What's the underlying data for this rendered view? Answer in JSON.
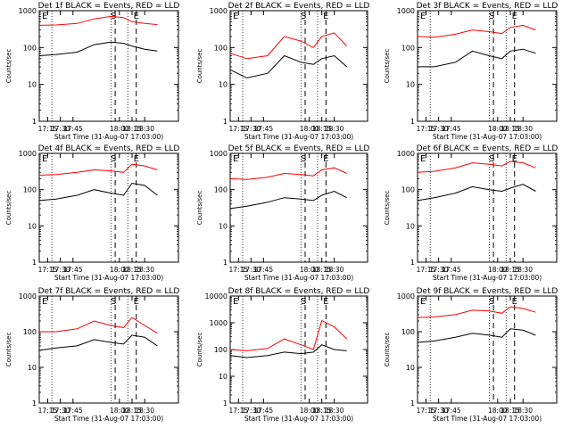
{
  "chart_data": [
    {
      "type": "line",
      "title": "Det 1f BLACK = Events, RED = LLD",
      "ylabel": "Counts/sec",
      "xlabel": "Start Time (31-Aug-07 17:03:00)",
      "yscale": "log",
      "ylim": [
        1,
        1000
      ],
      "ytick_labels": [
        "1",
        "10",
        "100",
        "1000"
      ],
      "xtick_labels": [
        "17:15",
        "17:30",
        "17:45",
        "18:00",
        "18:15",
        "18:30"
      ],
      "annotations": [
        "S",
        "E"
      ],
      "series": [
        {
          "color": "#000000",
          "x": [
            17.05,
            17.25,
            17.5,
            17.7,
            17.9,
            18.05,
            18.15,
            18.3,
            18.45
          ],
          "values": [
            60,
            65,
            75,
            120,
            140,
            130,
            110,
            90,
            80
          ]
        },
        {
          "color": "#ff0000",
          "x": [
            17.05,
            17.25,
            17.5,
            17.7,
            17.9,
            18.05,
            18.15,
            18.3,
            18.45
          ],
          "values": [
            400,
            410,
            450,
            600,
            700,
            650,
            500,
            450,
            420
          ]
        }
      ]
    },
    {
      "type": "line",
      "title": "Det 2f BLACK = Events, RED = LLD",
      "ylabel": "Counts/sec",
      "xlabel": "Start Time (31-Aug-07 17:03:00)",
      "yscale": "log",
      "ylim": [
        1,
        1000
      ],
      "ytick_labels": [
        "1",
        "10",
        "100",
        "1000"
      ],
      "xtick_labels": [
        "17:15",
        "17:30",
        "17:45",
        "18:00",
        "18:15",
        "18:30"
      ],
      "annotations": [
        "S",
        "E"
      ],
      "series": [
        {
          "color": "#000000",
          "x": [
            17.05,
            17.25,
            17.5,
            17.7,
            17.9,
            18.05,
            18.15,
            18.3,
            18.45
          ],
          "values": [
            25,
            15,
            20,
            60,
            40,
            35,
            50,
            60,
            30
          ]
        },
        {
          "color": "#ff0000",
          "x": [
            17.05,
            17.25,
            17.5,
            17.7,
            17.9,
            18.05,
            18.15,
            18.3,
            18.45
          ],
          "values": [
            70,
            50,
            60,
            200,
            150,
            100,
            200,
            250,
            110
          ]
        }
      ]
    },
    {
      "type": "line",
      "title": "Det 3f BLACK = Events, RED = LLD",
      "ylabel": "Counts/sec",
      "xlabel": "Start Time (31-Aug-07 17:03:00)",
      "yscale": "log",
      "ylim": [
        1,
        1000
      ],
      "ytick_labels": [
        "1",
        "10",
        "100",
        "1000"
      ],
      "xtick_labels": [
        "17:15",
        "17:30",
        "17:45",
        "18:00",
        "18:15",
        "18:30"
      ],
      "annotations": [
        "S",
        "E"
      ],
      "series": [
        {
          "color": "#000000",
          "x": [
            17.05,
            17.25,
            17.5,
            17.7,
            17.9,
            18.05,
            18.15,
            18.3,
            18.45
          ],
          "values": [
            30,
            30,
            40,
            80,
            60,
            50,
            80,
            90,
            70
          ]
        },
        {
          "color": "#ff0000",
          "x": [
            17.05,
            17.25,
            17.5,
            17.7,
            17.9,
            18.05,
            18.15,
            18.3,
            18.45
          ],
          "values": [
            200,
            190,
            230,
            300,
            270,
            240,
            350,
            400,
            300
          ]
        }
      ]
    },
    {
      "type": "line",
      "title": "Det 4f BLACK = Events, RED = LLD",
      "ylabel": "Counts/sec",
      "xlabel": "Start Time (31-Aug-07 17:03:00)",
      "yscale": "log",
      "ylim": [
        1,
        1000
      ],
      "ytick_labels": [
        "1",
        "10",
        "100",
        "1000"
      ],
      "xtick_labels": [
        "17:15",
        "17:30",
        "17:45",
        "18:00",
        "18:15",
        "18:30"
      ],
      "annotations": [
        "S",
        "E"
      ],
      "series": [
        {
          "color": "#000000",
          "x": [
            17.05,
            17.25,
            17.5,
            17.7,
            17.9,
            18.05,
            18.15,
            18.3,
            18.45
          ],
          "values": [
            50,
            55,
            70,
            100,
            80,
            70,
            150,
            130,
            70
          ]
        },
        {
          "color": "#ff0000",
          "x": [
            17.05,
            17.25,
            17.5,
            17.7,
            17.9,
            18.05,
            18.15,
            18.3,
            18.45
          ],
          "values": [
            250,
            260,
            300,
            350,
            330,
            300,
            500,
            450,
            350
          ]
        }
      ]
    },
    {
      "type": "line",
      "title": "Det 5f BLACK = Events, RED = LLD",
      "ylabel": "Counts/sec",
      "xlabel": "Start Time (31-Aug-07 17:03:00)",
      "yscale": "log",
      "ylim": [
        1,
        1000
      ],
      "ytick_labels": [
        "1",
        "10",
        "100",
        "1000"
      ],
      "xtick_labels": [
        "17:15",
        "17:30",
        "17:45",
        "18:00",
        "18:15",
        "18:30"
      ],
      "annotations": [
        "S",
        "E"
      ],
      "series": [
        {
          "color": "#000000",
          "x": [
            17.05,
            17.25,
            17.5,
            17.7,
            17.9,
            18.05,
            18.15,
            18.3,
            18.45
          ],
          "values": [
            30,
            35,
            45,
            60,
            55,
            50,
            70,
            90,
            60
          ]
        },
        {
          "color": "#ff0000",
          "x": [
            17.05,
            17.25,
            17.5,
            17.7,
            17.9,
            18.05,
            18.15,
            18.3,
            18.45
          ],
          "values": [
            200,
            190,
            220,
            280,
            260,
            240,
            350,
            400,
            280
          ]
        }
      ]
    },
    {
      "type": "line",
      "title": "Det 6f BLACK = Events, RED = LLD",
      "ylabel": "Counts/sec",
      "xlabel": "Start Time (31-Aug-07 17:03:00)",
      "yscale": "log",
      "ylim": [
        1,
        1000
      ],
      "ytick_labels": [
        "1",
        "10",
        "100",
        "1000"
      ],
      "xtick_labels": [
        "17:15",
        "17:30",
        "17:45",
        "18:00",
        "18:15",
        "18:30"
      ],
      "annotations": [
        "S",
        "E"
      ],
      "series": [
        {
          "color": "#000000",
          "x": [
            17.05,
            17.25,
            17.5,
            17.7,
            17.9,
            18.05,
            18.15,
            18.3,
            18.45
          ],
          "values": [
            50,
            60,
            80,
            120,
            100,
            90,
            110,
            140,
            90
          ]
        },
        {
          "color": "#ff0000",
          "x": [
            17.05,
            17.25,
            17.5,
            17.7,
            17.9,
            18.05,
            18.15,
            18.3,
            18.45
          ],
          "values": [
            300,
            320,
            400,
            550,
            500,
            450,
            600,
            550,
            400
          ]
        }
      ]
    },
    {
      "type": "line",
      "title": "Det 7f BLACK = Events, RED = LLD",
      "ylabel": "Counts/sec",
      "xlabel": "Start Time (31-Aug-07 17:03:00)",
      "yscale": "log",
      "ylim": [
        1,
        1000
      ],
      "ytick_labels": [
        "1",
        "10",
        "100",
        "1000"
      ],
      "xtick_labels": [
        "17:15",
        "17:30",
        "17:45",
        "18:00",
        "18:15",
        "18:30"
      ],
      "annotations": [
        "S",
        "E"
      ],
      "series": [
        {
          "color": "#000000",
          "x": [
            17.05,
            17.25,
            17.5,
            17.7,
            17.9,
            18.05,
            18.15,
            18.3,
            18.45
          ],
          "values": [
            30,
            35,
            40,
            60,
            50,
            45,
            80,
            70,
            40
          ]
        },
        {
          "color": "#ff0000",
          "x": [
            17.05,
            17.25,
            17.5,
            17.7,
            17.9,
            18.05,
            18.15,
            18.3,
            18.45
          ],
          "values": [
            100,
            100,
            120,
            200,
            150,
            130,
            250,
            150,
            90
          ]
        }
      ]
    },
    {
      "type": "line",
      "title": "Det 8f BLACK = Events, RED = LLD",
      "ylabel": "Counts/sec",
      "xlabel": "Start Time (31-Aug-07 17:03:00)",
      "yscale": "log",
      "ylim": [
        1,
        10000
      ],
      "ytick_labels": [
        "1",
        "10",
        "100",
        "1000",
        "10000"
      ],
      "xtick_labels": [
        "17:15",
        "17:30",
        "17:45",
        "18:00",
        "18:15",
        "18:30"
      ],
      "annotations": [
        "S",
        "E"
      ],
      "series": [
        {
          "color": "#000000",
          "x": [
            17.05,
            17.25,
            17.5,
            17.7,
            17.9,
            18.05,
            18.15,
            18.3,
            18.45
          ],
          "values": [
            60,
            50,
            60,
            80,
            70,
            80,
            150,
            100,
            90
          ]
        },
        {
          "color": "#ff0000",
          "x": [
            17.05,
            17.25,
            17.5,
            17.7,
            17.9,
            18.05,
            18.15,
            18.3,
            18.45
          ],
          "values": [
            100,
            90,
            110,
            250,
            150,
            100,
            1200,
            700,
            250
          ]
        }
      ]
    },
    {
      "type": "line",
      "title": "Det 9f BLACK = Events, RED = LLD",
      "ylabel": "Counts/sec",
      "xlabel": "Start Time (31-Aug-07 17:03:00)",
      "yscale": "log",
      "ylim": [
        1,
        1000
      ],
      "ytick_labels": [
        "1",
        "10",
        "100",
        "1000"
      ],
      "xtick_labels": [
        "17:15",
        "17:30",
        "17:45",
        "18:00",
        "18:15",
        "18:30"
      ],
      "annotations": [
        "S",
        "E"
      ],
      "series": [
        {
          "color": "#000000",
          "x": [
            17.05,
            17.25,
            17.5,
            17.7,
            17.9,
            18.05,
            18.15,
            18.3,
            18.45
          ],
          "values": [
            50,
            55,
            70,
            90,
            80,
            70,
            120,
            110,
            80
          ]
        },
        {
          "color": "#ff0000",
          "x": [
            17.05,
            17.25,
            17.5,
            17.7,
            17.9,
            18.05,
            18.15,
            18.3,
            18.45
          ],
          "values": [
            250,
            260,
            300,
            400,
            380,
            330,
            500,
            450,
            350
          ]
        }
      ]
    }
  ]
}
